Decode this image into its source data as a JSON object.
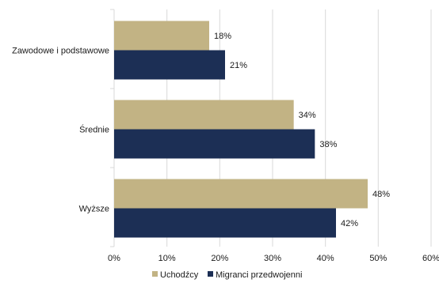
{
  "chart_data": {
    "type": "bar",
    "orientation": "horizontal",
    "categories": [
      "Zawodowe i podstawowe",
      "Średnie",
      "Wyższe"
    ],
    "series": [
      {
        "name": "Uchodźcy",
        "color": "#c2b384",
        "values": [
          18,
          34,
          48
        ]
      },
      {
        "name": "Migranci przedwojenni",
        "color": "#1c2f55",
        "values": [
          21,
          38,
          42
        ]
      }
    ],
    "value_suffix": "%",
    "xlim": [
      0,
      60
    ],
    "xticks": [
      0,
      10,
      20,
      30,
      40,
      50,
      60
    ],
    "grid": "vertical",
    "legend": "bottom"
  }
}
